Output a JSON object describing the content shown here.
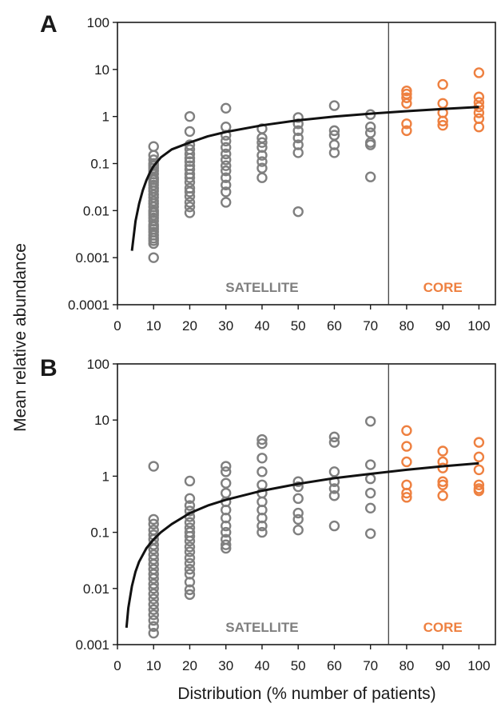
{
  "figure": {
    "ylabel": "Mean relative abundance",
    "xlabel": "Distribution (% number of patients)"
  },
  "colors": {
    "satellite": "#7f7f7f",
    "core": "#ee8040",
    "curve": "#111111",
    "axis": "#1a1a1a"
  },
  "chart_data": [
    {
      "type": "scatter",
      "panel_label": "A",
      "xlabel": "Distribution (% number of patients)",
      "ylabel": "Mean relative abundance",
      "xlim": [
        0,
        105
      ],
      "ylim": [
        0.0001,
        100
      ],
      "yscale": "log",
      "x_ticks": [
        "0",
        "10",
        "20",
        "30",
        "40",
        "50",
        "60",
        "70",
        "80",
        "90",
        "100"
      ],
      "y_ticks": [
        "0.0001",
        "0.001",
        "0.01",
        "0.1",
        "1",
        "10",
        "100"
      ],
      "divider_x": 75,
      "region_labels": {
        "satellite": "SATELLITE",
        "core": "CORE"
      },
      "series": [
        {
          "name": "SATELLITE",
          "points": [
            [
              10,
              0.23
            ],
            [
              10,
              0.15
            ],
            [
              10,
              0.12
            ],
            [
              10,
              0.1
            ],
            [
              10,
              0.09
            ],
            [
              10,
              0.08
            ],
            [
              10,
              0.07
            ],
            [
              10,
              0.06
            ],
            [
              10,
              0.05
            ],
            [
              10,
              0.045
            ],
            [
              10,
              0.04
            ],
            [
              10,
              0.035
            ],
            [
              10,
              0.03
            ],
            [
              10,
              0.026
            ],
            [
              10,
              0.022
            ],
            [
              10,
              0.019
            ],
            [
              10,
              0.016
            ],
            [
              10,
              0.014
            ],
            [
              10,
              0.012
            ],
            [
              10,
              0.01
            ],
            [
              10,
              0.009
            ],
            [
              10,
              0.008
            ],
            [
              10,
              0.007
            ],
            [
              10,
              0.006
            ],
            [
              10,
              0.005
            ],
            [
              10,
              0.0045
            ],
            [
              10,
              0.004
            ],
            [
              10,
              0.0035
            ],
            [
              10,
              0.003
            ],
            [
              10,
              0.0026
            ],
            [
              10,
              0.0023
            ],
            [
              10,
              0.002
            ],
            [
              10,
              0.001
            ],
            [
              20,
              1.0
            ],
            [
              20,
              0.48
            ],
            [
              20,
              0.25
            ],
            [
              20,
              0.2
            ],
            [
              20,
              0.16
            ],
            [
              20,
              0.13
            ],
            [
              20,
              0.11
            ],
            [
              20,
              0.09
            ],
            [
              20,
              0.075
            ],
            [
              20,
              0.06
            ],
            [
              20,
              0.05
            ],
            [
              20,
              0.04
            ],
            [
              20,
              0.03
            ],
            [
              20,
              0.025
            ],
            [
              20,
              0.02
            ],
            [
              20,
              0.015
            ],
            [
              20,
              0.012
            ],
            [
              20,
              0.009
            ],
            [
              30,
              1.5
            ],
            [
              30,
              0.6
            ],
            [
              30,
              0.4
            ],
            [
              30,
              0.3
            ],
            [
              30,
              0.22
            ],
            [
              30,
              0.16
            ],
            [
              30,
              0.12
            ],
            [
              30,
              0.09
            ],
            [
              30,
              0.07
            ],
            [
              30,
              0.05
            ],
            [
              30,
              0.035
            ],
            [
              30,
              0.025
            ],
            [
              30,
              0.015
            ],
            [
              40,
              0.55
            ],
            [
              40,
              0.35
            ],
            [
              40,
              0.28
            ],
            [
              40,
              0.22
            ],
            [
              40,
              0.15
            ],
            [
              40,
              0.11
            ],
            [
              40,
              0.08
            ],
            [
              40,
              0.05
            ],
            [
              50,
              0.95
            ],
            [
              50,
              0.7
            ],
            [
              50,
              0.5
            ],
            [
              50,
              0.35
            ],
            [
              50,
              0.25
            ],
            [
              50,
              0.17
            ],
            [
              50,
              0.0095
            ],
            [
              60,
              1.7
            ],
            [
              60,
              0.5
            ],
            [
              60,
              0.4
            ],
            [
              60,
              0.25
            ],
            [
              60,
              0.17
            ],
            [
              70,
              1.1
            ],
            [
              70,
              0.6
            ],
            [
              70,
              0.45
            ],
            [
              70,
              0.28
            ],
            [
              70,
              0.25
            ],
            [
              70,
              0.052
            ]
          ]
        },
        {
          "name": "CORE",
          "points": [
            [
              80,
              3.5
            ],
            [
              80,
              3.0
            ],
            [
              80,
              2.5
            ],
            [
              80,
              1.9
            ],
            [
              80,
              0.7
            ],
            [
              80,
              0.5
            ],
            [
              90,
              4.8
            ],
            [
              90,
              1.9
            ],
            [
              90,
              1.2
            ],
            [
              90,
              0.8
            ],
            [
              90,
              0.65
            ],
            [
              100,
              8.5
            ],
            [
              100,
              2.6
            ],
            [
              100,
              2.0
            ],
            [
              100,
              1.6
            ],
            [
              100,
              1.2
            ],
            [
              100,
              0.9
            ],
            [
              100,
              0.6
            ]
          ]
        }
      ],
      "fit_curve": {
        "x": [
          4,
          5,
          6,
          7,
          8,
          9,
          10,
          12,
          15,
          20,
          25,
          30,
          40,
          50,
          60,
          70,
          80,
          90,
          100
        ],
        "y": [
          0.0014,
          0.006,
          0.014,
          0.027,
          0.044,
          0.065,
          0.088,
          0.135,
          0.2,
          0.28,
          0.38,
          0.47,
          0.65,
          0.83,
          1.0,
          1.15,
          1.3,
          1.45,
          1.6
        ]
      }
    },
    {
      "type": "scatter",
      "panel_label": "B",
      "xlabel": "Distribution (% number of patients)",
      "ylabel": "Mean relative abundance",
      "xlim": [
        0,
        105
      ],
      "ylim": [
        0.001,
        100
      ],
      "yscale": "log",
      "x_ticks": [
        "0",
        "10",
        "20",
        "30",
        "40",
        "50",
        "60",
        "70",
        "80",
        "90",
        "100"
      ],
      "y_ticks": [
        "0.001",
        "0.01",
        "0.1",
        "1",
        "10",
        "100"
      ],
      "divider_x": 75,
      "region_labels": {
        "satellite": "SATELLITE",
        "core": "CORE"
      },
      "series": [
        {
          "name": "SATELLITE",
          "points": [
            [
              10,
              1.5
            ],
            [
              10,
              0.17
            ],
            [
              10,
              0.14
            ],
            [
              10,
              0.11
            ],
            [
              10,
              0.09
            ],
            [
              10,
              0.075
            ],
            [
              10,
              0.06
            ],
            [
              10,
              0.05
            ],
            [
              10,
              0.04
            ],
            [
              10,
              0.033
            ],
            [
              10,
              0.027
            ],
            [
              10,
              0.022
            ],
            [
              10,
              0.018
            ],
            [
              10,
              0.015
            ],
            [
              10,
              0.012
            ],
            [
              10,
              0.01
            ],
            [
              10,
              0.008
            ],
            [
              10,
              0.0065
            ],
            [
              10,
              0.0052
            ],
            [
              10,
              0.0042
            ],
            [
              10,
              0.0034
            ],
            [
              10,
              0.0027
            ],
            [
              10,
              0.0021
            ],
            [
              10,
              0.0016
            ],
            [
              20,
              0.82
            ],
            [
              20,
              0.4
            ],
            [
              20,
              0.3
            ],
            [
              20,
              0.24
            ],
            [
              20,
              0.19
            ],
            [
              20,
              0.15
            ],
            [
              20,
              0.12
            ],
            [
              20,
              0.1
            ],
            [
              20,
              0.085
            ],
            [
              20,
              0.07
            ],
            [
              20,
              0.055
            ],
            [
              20,
              0.045
            ],
            [
              20,
              0.035
            ],
            [
              20,
              0.028
            ],
            [
              20,
              0.022
            ],
            [
              20,
              0.018
            ],
            [
              20,
              0.013
            ],
            [
              20,
              0.0095
            ],
            [
              20,
              0.0078
            ],
            [
              30,
              1.5
            ],
            [
              30,
              1.2
            ],
            [
              30,
              0.75
            ],
            [
              30,
              0.5
            ],
            [
              30,
              0.35
            ],
            [
              30,
              0.25
            ],
            [
              30,
              0.18
            ],
            [
              30,
              0.13
            ],
            [
              30,
              0.1
            ],
            [
              30,
              0.075
            ],
            [
              30,
              0.06
            ],
            [
              30,
              0.052
            ],
            [
              40,
              4.5
            ],
            [
              40,
              3.8
            ],
            [
              40,
              2.1
            ],
            [
              40,
              1.2
            ],
            [
              40,
              0.7
            ],
            [
              40,
              0.5
            ],
            [
              40,
              0.35
            ],
            [
              40,
              0.25
            ],
            [
              40,
              0.18
            ],
            [
              40,
              0.13
            ],
            [
              40,
              0.1
            ],
            [
              50,
              0.8
            ],
            [
              50,
              0.65
            ],
            [
              50,
              0.4
            ],
            [
              50,
              0.22
            ],
            [
              50,
              0.17
            ],
            [
              50,
              0.11
            ],
            [
              60,
              5.0
            ],
            [
              60,
              4.0
            ],
            [
              60,
              1.2
            ],
            [
              60,
              0.8
            ],
            [
              60,
              0.6
            ],
            [
              60,
              0.45
            ],
            [
              60,
              0.13
            ],
            [
              70,
              9.5
            ],
            [
              70,
              1.6
            ],
            [
              70,
              0.9
            ],
            [
              70,
              0.5
            ],
            [
              70,
              0.27
            ],
            [
              70,
              0.095
            ]
          ]
        },
        {
          "name": "CORE",
          "points": [
            [
              80,
              6.5
            ],
            [
              80,
              3.4
            ],
            [
              80,
              1.8
            ],
            [
              80,
              0.7
            ],
            [
              80,
              0.5
            ],
            [
              80,
              0.42
            ],
            [
              90,
              2.8
            ],
            [
              90,
              1.8
            ],
            [
              90,
              1.4
            ],
            [
              90,
              0.8
            ],
            [
              90,
              0.7
            ],
            [
              90,
              0.45
            ],
            [
              100,
              4.0
            ],
            [
              100,
              2.2
            ],
            [
              100,
              1.3
            ],
            [
              100,
              0.7
            ],
            [
              100,
              0.6
            ],
            [
              100,
              0.55
            ]
          ]
        }
      ],
      "fit_curve": {
        "x": [
          2.5,
          3,
          4,
          5,
          6,
          8,
          10,
          12,
          15,
          20,
          25,
          30,
          40,
          50,
          60,
          70,
          80,
          90,
          100
        ],
        "y": [
          0.002,
          0.0045,
          0.011,
          0.02,
          0.03,
          0.052,
          0.075,
          0.1,
          0.14,
          0.22,
          0.3,
          0.38,
          0.55,
          0.73,
          0.92,
          1.1,
          1.3,
          1.5,
          1.7
        ]
      }
    }
  ]
}
